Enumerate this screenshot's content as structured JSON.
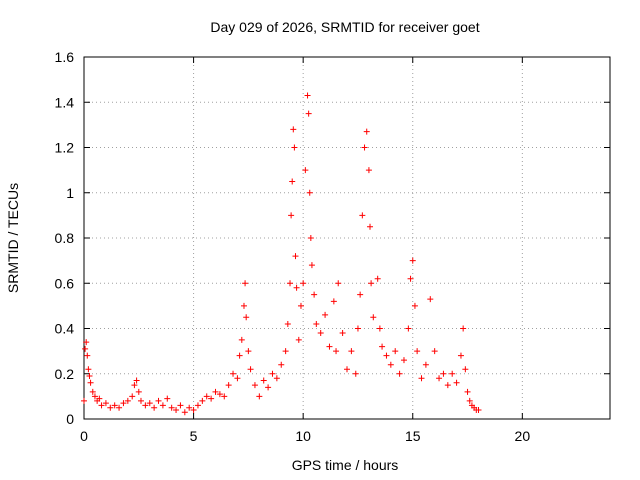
{
  "chart_data": {
    "type": "scatter",
    "title": "Day 029 of 2026, SRMTID for receiver goet",
    "xlabel": "GPS time / hours",
    "ylabel": "SRMTID / TECUs",
    "xlim": [
      0,
      24
    ],
    "ylim": [
      0,
      1.6
    ],
    "grid": true,
    "marker": "+",
    "color": "#ff0000",
    "x_ticks": [
      0,
      5,
      10,
      15,
      20
    ],
    "x_tick_labels": [
      "0",
      "5",
      "10",
      "15",
      "20"
    ],
    "y_ticks": [
      0,
      0.2,
      0.4,
      0.6,
      0.8,
      1.0,
      1.2,
      1.4,
      1.6
    ],
    "y_tick_labels": [
      "0",
      "0.2",
      "0.4",
      "0.6",
      "0.8",
      "1",
      "1.2",
      "1.4",
      "1.6"
    ],
    "series": [
      {
        "name": "SRMTID",
        "points": [
          [
            0.0,
            0.08
          ],
          [
            0.05,
            0.31
          ],
          [
            0.1,
            0.34
          ],
          [
            0.15,
            0.28
          ],
          [
            0.2,
            0.22
          ],
          [
            0.25,
            0.19
          ],
          [
            0.3,
            0.16
          ],
          [
            0.4,
            0.12
          ],
          [
            0.5,
            0.1
          ],
          [
            0.6,
            0.08
          ],
          [
            0.7,
            0.09
          ],
          [
            0.8,
            0.06
          ],
          [
            1.0,
            0.07
          ],
          [
            1.2,
            0.05
          ],
          [
            1.4,
            0.06
          ],
          [
            1.6,
            0.05
          ],
          [
            1.8,
            0.07
          ],
          [
            2.0,
            0.08
          ],
          [
            2.2,
            0.1
          ],
          [
            2.3,
            0.15
          ],
          [
            2.4,
            0.17
          ],
          [
            2.5,
            0.12
          ],
          [
            2.6,
            0.08
          ],
          [
            2.8,
            0.06
          ],
          [
            3.0,
            0.07
          ],
          [
            3.2,
            0.05
          ],
          [
            3.4,
            0.08
          ],
          [
            3.6,
            0.06
          ],
          [
            3.8,
            0.09
          ],
          [
            4.0,
            0.05
          ],
          [
            4.2,
            0.04
          ],
          [
            4.4,
            0.06
          ],
          [
            4.6,
            0.03
          ],
          [
            4.8,
            0.05
          ],
          [
            5.0,
            0.04
          ],
          [
            5.2,
            0.06
          ],
          [
            5.4,
            0.08
          ],
          [
            5.6,
            0.1
          ],
          [
            5.8,
            0.09
          ],
          [
            6.0,
            0.12
          ],
          [
            6.2,
            0.11
          ],
          [
            6.4,
            0.1
          ],
          [
            6.6,
            0.15
          ],
          [
            6.8,
            0.2
          ],
          [
            7.0,
            0.18
          ],
          [
            7.1,
            0.28
          ],
          [
            7.2,
            0.35
          ],
          [
            7.3,
            0.5
          ],
          [
            7.35,
            0.6
          ],
          [
            7.4,
            0.45
          ],
          [
            7.5,
            0.3
          ],
          [
            7.6,
            0.22
          ],
          [
            7.8,
            0.15
          ],
          [
            8.0,
            0.1
          ],
          [
            8.2,
            0.17
          ],
          [
            8.4,
            0.14
          ],
          [
            8.6,
            0.2
          ],
          [
            8.8,
            0.18
          ],
          [
            9.0,
            0.24
          ],
          [
            9.2,
            0.3
          ],
          [
            9.3,
            0.42
          ],
          [
            9.4,
            0.6
          ],
          [
            9.45,
            0.9
          ],
          [
            9.5,
            1.05
          ],
          [
            9.55,
            1.28
          ],
          [
            9.6,
            1.2
          ],
          [
            9.65,
            0.72
          ],
          [
            9.7,
            0.58
          ],
          [
            9.8,
            0.35
          ],
          [
            9.9,
            0.5
          ],
          [
            10.0,
            0.6
          ],
          [
            10.1,
            1.1
          ],
          [
            10.2,
            1.43
          ],
          [
            10.25,
            1.35
          ],
          [
            10.3,
            1.0
          ],
          [
            10.35,
            0.8
          ],
          [
            10.4,
            0.68
          ],
          [
            10.5,
            0.55
          ],
          [
            10.6,
            0.42
          ],
          [
            10.8,
            0.38
          ],
          [
            11.0,
            0.46
          ],
          [
            11.2,
            0.32
          ],
          [
            11.4,
            0.52
          ],
          [
            11.5,
            0.3
          ],
          [
            11.6,
            0.6
          ],
          [
            11.8,
            0.38
          ],
          [
            12.0,
            0.22
          ],
          [
            12.2,
            0.3
          ],
          [
            12.4,
            0.2
          ],
          [
            12.5,
            0.4
          ],
          [
            12.6,
            0.55
          ],
          [
            12.7,
            0.9
          ],
          [
            12.8,
            1.2
          ],
          [
            12.9,
            1.27
          ],
          [
            13.0,
            1.1
          ],
          [
            13.05,
            0.85
          ],
          [
            13.1,
            0.6
          ],
          [
            13.2,
            0.45
          ],
          [
            13.4,
            0.62
          ],
          [
            13.5,
            0.4
          ],
          [
            13.6,
            0.32
          ],
          [
            13.8,
            0.28
          ],
          [
            14.0,
            0.24
          ],
          [
            14.2,
            0.3
          ],
          [
            14.4,
            0.2
          ],
          [
            14.6,
            0.26
          ],
          [
            14.8,
            0.4
          ],
          [
            14.9,
            0.62
          ],
          [
            15.0,
            0.7
          ],
          [
            15.1,
            0.5
          ],
          [
            15.2,
            0.3
          ],
          [
            15.4,
            0.18
          ],
          [
            15.6,
            0.24
          ],
          [
            15.8,
            0.53
          ],
          [
            16.0,
            0.3
          ],
          [
            16.2,
            0.18
          ],
          [
            16.4,
            0.2
          ],
          [
            16.6,
            0.15
          ],
          [
            16.8,
            0.2
          ],
          [
            17.0,
            0.16
          ],
          [
            17.2,
            0.28
          ],
          [
            17.3,
            0.4
          ],
          [
            17.4,
            0.22
          ],
          [
            17.5,
            0.12
          ],
          [
            17.6,
            0.08
          ],
          [
            17.7,
            0.06
          ],
          [
            17.8,
            0.05
          ],
          [
            17.9,
            0.04
          ],
          [
            18.0,
            0.04
          ]
        ]
      }
    ]
  }
}
